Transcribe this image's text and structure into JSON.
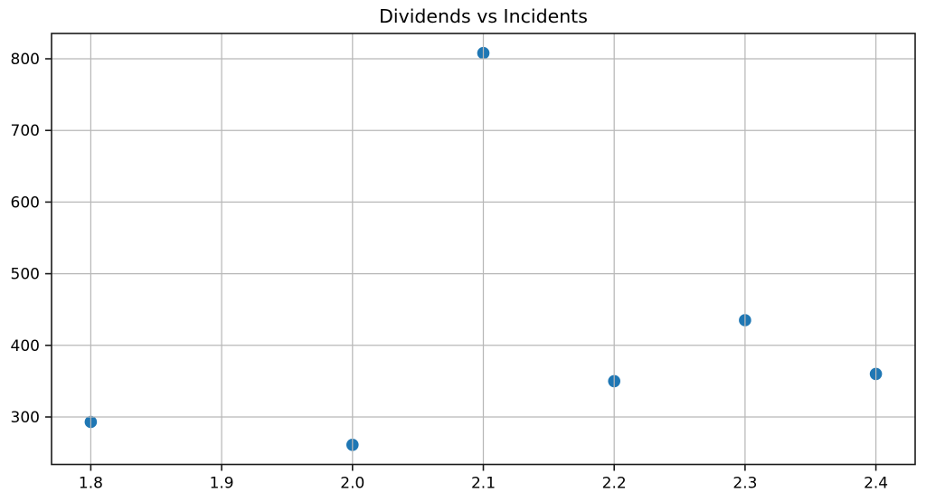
{
  "chart_data": {
    "type": "scatter",
    "title": "Dividends vs Incidents",
    "xlabel": "",
    "ylabel": "",
    "x": [
      1.8,
      2.0,
      2.1,
      2.2,
      2.3,
      2.4
    ],
    "y": [
      293,
      261,
      808,
      350,
      435,
      360
    ],
    "series": [
      {
        "name": "Incidents",
        "points": [
          {
            "x": 1.8,
            "y": 293
          },
          {
            "x": 2.0,
            "y": 261
          },
          {
            "x": 2.1,
            "y": 808
          },
          {
            "x": 2.2,
            "y": 350
          },
          {
            "x": 2.3,
            "y": 435
          },
          {
            "x": 2.4,
            "y": 360
          }
        ]
      }
    ],
    "xticks": [
      1.8,
      1.9,
      2.0,
      2.1,
      2.2,
      2.3,
      2.4
    ],
    "xtick_labels": [
      "1.8",
      "1.9",
      "2.0",
      "2.1",
      "2.2",
      "2.3",
      "2.4"
    ],
    "yticks": [
      300,
      400,
      500,
      600,
      700,
      800
    ],
    "ytick_labels": [
      "300",
      "400",
      "500",
      "600",
      "700",
      "800"
    ],
    "xlim": [
      1.77,
      2.43
    ],
    "ylim": [
      233.65,
      835.35
    ],
    "grid": true,
    "grid_over_points": true,
    "legend": null,
    "colors": {
      "marker": "#1f77b4",
      "grid": "#b8b8b8",
      "spine": "#1a1a1a",
      "text": "#000000",
      "background": "#ffffff"
    }
  }
}
